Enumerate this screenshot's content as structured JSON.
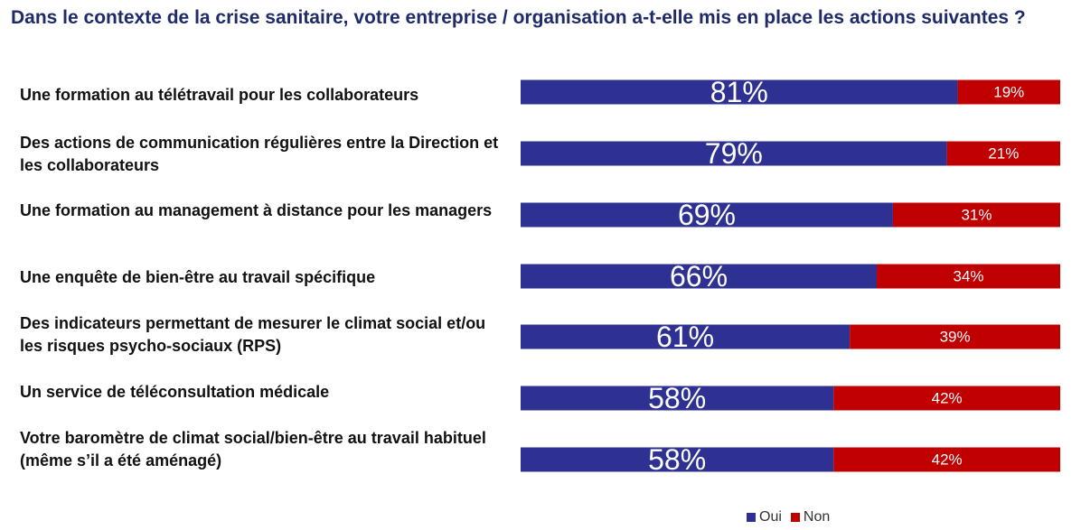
{
  "chart_data": {
    "type": "bar",
    "stacked": true,
    "orientation": "horizontal",
    "title": "Dans le contexte de la crise sanitaire, votre entreprise / organisation a-t-elle mis en place les actions suivantes ?",
    "categories": [
      "Une formation au télétravail pour les collaborateurs",
      "Des actions de communication régulières entre la Direction et les collaborateurs",
      "Une formation au management à distance pour les managers",
      "Une enquête de bien-être au travail spécifique",
      "Des indicateurs permettant de mesurer le climat social et/ou les risques psycho-sociaux (RPS)",
      "Un service de téléconsultation médicale",
      "Votre baromètre de climat social/bien-être au travail habituel (même s’il a été aménagé)"
    ],
    "series": [
      {
        "name": "Oui",
        "color": "#2e3191",
        "values": [
          81,
          79,
          69,
          66,
          61,
          58,
          58
        ],
        "labels": [
          "81%",
          "79%",
          "69%",
          "66%",
          "61%",
          "58%",
          "58%"
        ]
      },
      {
        "name": "Non",
        "color": "#c00000",
        "values": [
          19,
          21,
          31,
          34,
          39,
          42,
          42
        ],
        "labels": [
          "19%",
          "21%",
          "31%",
          "34%",
          "39%",
          "42%",
          "42%"
        ]
      }
    ],
    "xlim": [
      0,
      100
    ],
    "grid": false,
    "legend_position": "bottom-right"
  }
}
